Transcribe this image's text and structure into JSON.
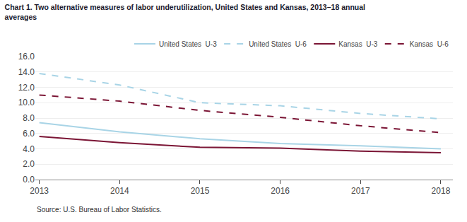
{
  "chart_data": {
    "type": "line",
    "title": "Chart 1. Two alternative measures of labor underutilization, United States and Kansas, 2013–18 annual\naverages",
    "annotations": [
      "Source: U.S. Bureau of Labor Statistics."
    ],
    "x": [
      2013,
      2014,
      2015,
      2016,
      2017,
      2018
    ],
    "series": [
      {
        "name": "United States  U-3",
        "color": "#a8d4e6",
        "line_style": "solid",
        "values": [
          7.4,
          6.2,
          5.3,
          4.7,
          4.4,
          4.0
        ]
      },
      {
        "name": "United States  U-6",
        "color": "#a8d4e6",
        "line_style": "dashed",
        "values": [
          13.8,
          12.3,
          10.0,
          9.6,
          8.6,
          7.9
        ]
      },
      {
        "name": "Kansas  U-3",
        "color": "#7b1535",
        "line_style": "solid",
        "values": [
          5.6,
          4.8,
          4.2,
          4.1,
          3.7,
          3.5
        ]
      },
      {
        "name": "Kansas  U-6",
        "color": "#7b1535",
        "line_style": "dashed",
        "values": [
          11.0,
          10.2,
          9.0,
          8.1,
          7.0,
          6.1
        ]
      }
    ],
    "xlim": [
      2012.95,
      2018.15
    ],
    "xticks": [
      2013,
      2014,
      2015,
      2016,
      2017,
      2018
    ],
    "ylim": [
      0.0,
      16.0
    ],
    "yticks": [
      {
        "value": 0,
        "label": "0.0"
      },
      {
        "value": 2,
        "label": "2.0"
      },
      {
        "value": 4,
        "label": "4.0"
      },
      {
        "value": 6,
        "label": "6.0"
      },
      {
        "value": 8,
        "label": "8.0"
      },
      {
        "value": 10,
        "label": "10.0"
      },
      {
        "value": 12,
        "label": "12.0"
      },
      {
        "value": 14,
        "label": "14.0"
      },
      {
        "value": 16,
        "label": "16.0"
      }
    ],
    "grid": true,
    "legend": "upper right"
  }
}
